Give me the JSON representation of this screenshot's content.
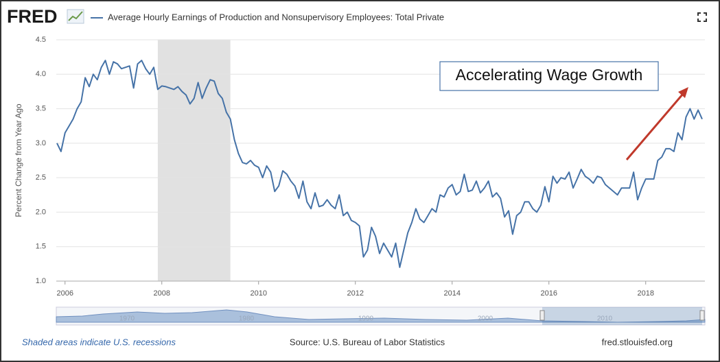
{
  "logo": "FRED",
  "chart_data": {
    "type": "line",
    "series": [
      {
        "name": "Average Hourly Earnings of Production and Nonsupervisory Employees: Total Private",
        "color": "#4572a7",
        "values": [
          3.0,
          2.88,
          3.15,
          3.25,
          3.35,
          3.5,
          3.6,
          3.95,
          3.82,
          4.0,
          3.92,
          4.1,
          4.2,
          4.0,
          4.18,
          4.15,
          4.08,
          4.1,
          4.12,
          3.8,
          4.15,
          4.2,
          4.08,
          4.0,
          4.1,
          3.78,
          3.83,
          3.82,
          3.8,
          3.78,
          3.82,
          3.75,
          3.7,
          3.57,
          3.65,
          3.88,
          3.65,
          3.8,
          3.92,
          3.9,
          3.72,
          3.65,
          3.45,
          3.35,
          3.05,
          2.85,
          2.72,
          2.7,
          2.75,
          2.68,
          2.65,
          2.5,
          2.67,
          2.58,
          2.3,
          2.38,
          2.6,
          2.55,
          2.45,
          2.38,
          2.2,
          2.45,
          2.15,
          2.05,
          2.28,
          2.08,
          2.1,
          2.18,
          2.1,
          2.05,
          2.25,
          1.95,
          2.0,
          1.88,
          1.85,
          1.8,
          1.35,
          1.45,
          1.78,
          1.65,
          1.4,
          1.55,
          1.45,
          1.35,
          1.55,
          1.2,
          1.45,
          1.7,
          1.85,
          2.05,
          1.9,
          1.85,
          1.95,
          2.05,
          2.0,
          2.25,
          2.22,
          2.35,
          2.4,
          2.25,
          2.3,
          2.55,
          2.3,
          2.32,
          2.45,
          2.28,
          2.35,
          2.45,
          2.22,
          2.28,
          2.2,
          1.93,
          2.02,
          1.68,
          1.95,
          2.0,
          2.15,
          2.15,
          2.05,
          2.0,
          2.1,
          2.37,
          2.15,
          2.52,
          2.42,
          2.5,
          2.48,
          2.58,
          2.35,
          2.48,
          2.62,
          2.52,
          2.48,
          2.42,
          2.52,
          2.5,
          2.4,
          2.35,
          2.3,
          2.25,
          2.35,
          2.35,
          2.35,
          2.58,
          2.18,
          2.35,
          2.48,
          2.48,
          2.48,
          2.75,
          2.8,
          2.92,
          2.92,
          2.88,
          3.15,
          3.05,
          3.38,
          3.5,
          3.35,
          3.48,
          3.35
        ]
      }
    ],
    "x": [
      "2005-11",
      "2005-12",
      "2006-01",
      "2006-02",
      "2006-03",
      "2006-04",
      "2006-05",
      "2006-06",
      "2006-07",
      "2006-08",
      "2006-09",
      "2006-10",
      "2006-11",
      "2006-12",
      "2007-01",
      "2007-02",
      "2007-03",
      "2007-04",
      "2007-05",
      "2007-06",
      "2007-07",
      "2007-08",
      "2007-09",
      "2007-10",
      "2007-11",
      "2007-12",
      "2008-01",
      "2008-02",
      "2008-03",
      "2008-04",
      "2008-05",
      "2008-06",
      "2008-07",
      "2008-08",
      "2008-09",
      "2008-10",
      "2008-11",
      "2008-12",
      "2009-01",
      "2009-02",
      "2009-03",
      "2009-04",
      "2009-05",
      "2009-06",
      "2009-07",
      "2009-08",
      "2009-09",
      "2009-10",
      "2009-11",
      "2009-12",
      "2010-01",
      "2010-02",
      "2010-03",
      "2010-04",
      "2010-05",
      "2010-06",
      "2010-07",
      "2010-08",
      "2010-09",
      "2010-10",
      "2010-11",
      "2010-12",
      "2011-01",
      "2011-02",
      "2011-03",
      "2011-04",
      "2011-05",
      "2011-06",
      "2011-07",
      "2011-08",
      "2011-09",
      "2011-10",
      "2011-11",
      "2011-12",
      "2012-01",
      "2012-02",
      "2012-03",
      "2012-04",
      "2012-05",
      "2012-06",
      "2012-07",
      "2012-08",
      "2012-09",
      "2012-10",
      "2012-11",
      "2012-12",
      "2013-01",
      "2013-02",
      "2013-03",
      "2013-04",
      "2013-05",
      "2013-06",
      "2013-07",
      "2013-08",
      "2013-09",
      "2013-10",
      "2013-11",
      "2013-12",
      "2014-01",
      "2014-02",
      "2014-03",
      "2014-04",
      "2014-05",
      "2014-06",
      "2014-07",
      "2014-08",
      "2014-09",
      "2014-10",
      "2014-11",
      "2014-12",
      "2015-01",
      "2015-02",
      "2015-03",
      "2015-04",
      "2015-05",
      "2015-06",
      "2015-07",
      "2015-08",
      "2015-09",
      "2015-10",
      "2015-11",
      "2015-12",
      "2016-01",
      "2016-02",
      "2016-03",
      "2016-04",
      "2016-05",
      "2016-06",
      "2016-07",
      "2016-08",
      "2016-09",
      "2016-10",
      "2016-11",
      "2016-12",
      "2017-01",
      "2017-02",
      "2017-03",
      "2017-04",
      "2017-05",
      "2017-06",
      "2017-07",
      "2017-08",
      "2017-09",
      "2017-10",
      "2017-11",
      "2017-12",
      "2018-01",
      "2018-02",
      "2018-03",
      "2018-04",
      "2018-05",
      "2018-06",
      "2018-07",
      "2018-08",
      "2018-09",
      "2018-10",
      "2018-11",
      "2018-12",
      "2019-01",
      "2019-02",
      "2019-03"
    ],
    "xlim": [
      "2005-11",
      "2019-03"
    ],
    "xticks": [
      2006,
      2008,
      2010,
      2012,
      2014,
      2016,
      2018
    ],
    "ylim": [
      1,
      4.5
    ],
    "yticks": [
      {
        "value": 1,
        "label": "1.0"
      },
      {
        "value": 1.5,
        "label": "1.5"
      },
      {
        "value": 2,
        "label": "2.0"
      },
      {
        "value": 2.5,
        "label": "2.5"
      },
      {
        "value": 3,
        "label": "3.0"
      },
      {
        "value": 3.5,
        "label": "3.5"
      },
      {
        "value": 4,
        "label": "4.0"
      },
      {
        "value": 4.5,
        "label": "4.5"
      }
    ],
    "ylabel": "Percent Change from Year Ago",
    "grid": true,
    "recessions": [
      [
        "2007-12",
        "2009-06"
      ]
    ],
    "annotation": "Accelerating Wage Growth",
    "navigator_labels": [
      "1970",
      "1980",
      "1990",
      "2000",
      "2010"
    ],
    "note": "Shaded areas indicate U.S. recessions",
    "source": "Source: U.S. Bureau of Labor Statistics",
    "site": "fred.stlouisfed.org"
  }
}
